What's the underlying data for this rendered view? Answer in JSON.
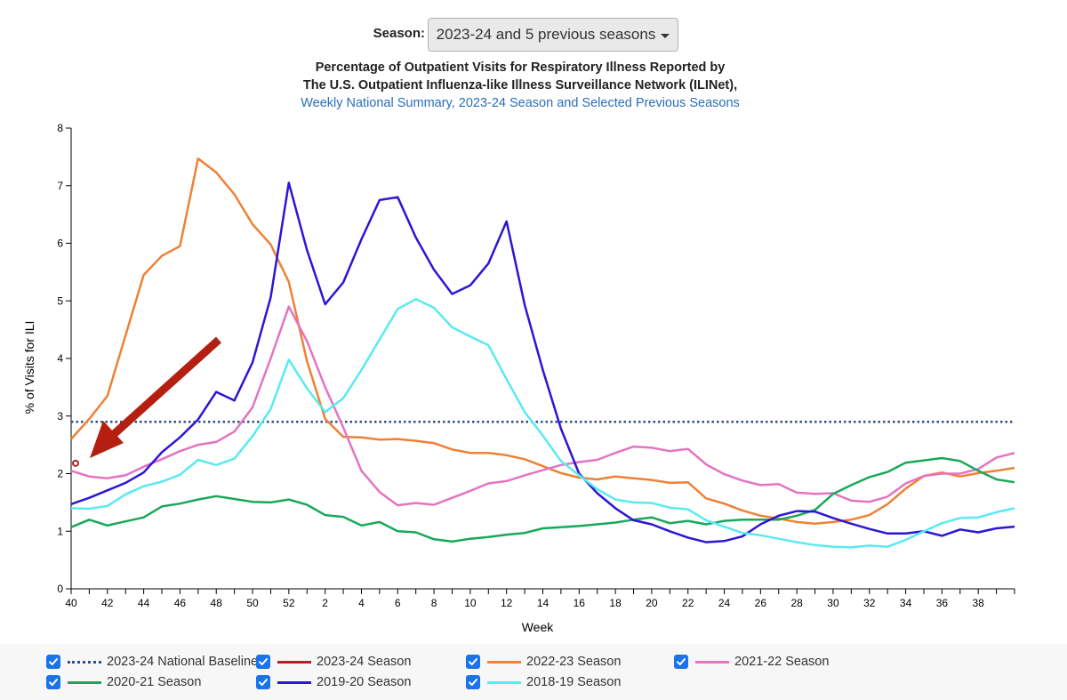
{
  "header": {
    "season_label": "Season:",
    "season_value": "2023-24 and 5 previous seasons",
    "title_line1": "Percentage of Outpatient Visits for Respiratory Illness Reported by",
    "title_line2": "The U.S. Outpatient Influenza-like Illness Surveillance Network (ILINet),",
    "title_line3": "Weekly National Summary, 2023-24 Season and Selected Previous Seasons"
  },
  "legend": [
    {
      "label": "2023-24 National Baseline",
      "color": "#2e4d8c",
      "dashed": true,
      "checked": true
    },
    {
      "label": "2023-24 Season",
      "color": "#b22222",
      "dashed": false,
      "checked": true
    },
    {
      "label": "2022-23 Season",
      "color": "#ee8136",
      "dashed": false,
      "checked": true
    },
    {
      "label": "2021-22 Season",
      "color": "#e374c2",
      "dashed": false,
      "checked": true
    },
    {
      "label": "2020-21 Season",
      "color": "#19a85a",
      "dashed": false,
      "checked": true
    },
    {
      "label": "2019-20 Season",
      "color": "#2c16d6",
      "dashed": false,
      "checked": true
    },
    {
      "label": "2018-19 Season",
      "color": "#59eaf2",
      "dashed": false,
      "checked": true
    }
  ],
  "chart_data": {
    "type": "line",
    "xlabel": "Week",
    "ylabel": "% of Visits for ILI",
    "ylim": [
      0,
      8
    ],
    "yticks": [
      "0",
      "1",
      "2",
      "3",
      "4",
      "5",
      "6",
      "7",
      "8"
    ],
    "xtick_labels": [
      "40",
      "42",
      "44",
      "46",
      "48",
      "50",
      "52",
      "2",
      "4",
      "6",
      "8",
      "10",
      "12",
      "14",
      "16",
      "18",
      "20",
      "22",
      "24",
      "26",
      "28",
      "30",
      "32",
      "34",
      "36",
      "38"
    ],
    "x_count": 53,
    "baseline": {
      "name": "2023-24 National Baseline",
      "value": 2.9,
      "color": "#2e4d8c"
    },
    "series": [
      {
        "name": "2023-24 Season",
        "color": "#b22222",
        "values": [
          2.18
        ]
      },
      {
        "name": "2022-23 Season",
        "color": "#ee8136",
        "values": [
          2.6,
          2.95,
          3.35,
          4.4,
          5.45,
          5.78,
          5.95,
          7.47,
          7.23,
          6.85,
          6.33,
          5.98,
          5.33,
          3.95,
          2.95,
          2.64,
          2.63,
          2.59,
          2.6,
          2.57,
          2.53,
          2.42,
          2.36,
          2.36,
          2.32,
          2.25,
          2.13,
          2.01,
          1.93,
          1.9,
          1.95,
          1.92,
          1.89,
          1.84,
          1.85,
          1.57,
          1.48,
          1.36,
          1.27,
          1.22,
          1.16,
          1.13,
          1.16,
          1.2,
          1.28,
          1.47,
          1.74,
          1.96,
          2.02,
          1.95,
          2.01,
          2.05,
          2.1
        ]
      },
      {
        "name": "2021-22 Season",
        "color": "#e374c2",
        "values": [
          2.05,
          1.95,
          1.92,
          1.97,
          2.12,
          2.25,
          2.39,
          2.5,
          2.55,
          2.73,
          3.15,
          4.0,
          4.9,
          4.3,
          3.5,
          2.8,
          2.05,
          1.68,
          1.45,
          1.49,
          1.46,
          1.58,
          1.7,
          1.83,
          1.87,
          1.97,
          2.06,
          2.15,
          2.2,
          2.24,
          2.36,
          2.47,
          2.45,
          2.39,
          2.43,
          2.16,
          1.99,
          1.88,
          1.8,
          1.82,
          1.67,
          1.65,
          1.66,
          1.53,
          1.51,
          1.6,
          1.83,
          1.96,
          2.0,
          2.0,
          2.08,
          2.28,
          2.36
        ]
      },
      {
        "name": "2020-21 Season",
        "color": "#19a85a",
        "values": [
          1.07,
          1.2,
          1.1,
          1.17,
          1.24,
          1.43,
          1.48,
          1.55,
          1.61,
          1.56,
          1.51,
          1.5,
          1.55,
          1.46,
          1.28,
          1.25,
          1.1,
          1.16,
          1.0,
          0.98,
          0.86,
          0.82,
          0.87,
          0.9,
          0.94,
          0.97,
          1.05,
          1.07,
          1.09,
          1.12,
          1.15,
          1.2,
          1.24,
          1.14,
          1.18,
          1.12,
          1.18,
          1.2,
          1.2,
          1.2,
          1.27,
          1.37,
          1.65,
          1.8,
          1.94,
          2.03,
          2.19,
          2.23,
          2.27,
          2.22,
          2.05,
          1.9,
          1.85
        ]
      },
      {
        "name": "2019-20 Season",
        "color": "#2c16d6",
        "values": [
          1.47,
          1.58,
          1.71,
          1.84,
          2.02,
          2.37,
          2.63,
          2.94,
          3.42,
          3.27,
          3.93,
          5.06,
          7.05,
          5.88,
          4.94,
          5.32,
          6.07,
          6.75,
          6.8,
          6.1,
          5.54,
          5.12,
          5.27,
          5.65,
          6.38,
          4.93,
          3.8,
          2.78,
          2.0,
          1.66,
          1.4,
          1.19,
          1.12,
          1.0,
          0.89,
          0.81,
          0.83,
          0.91,
          1.12,
          1.27,
          1.35,
          1.34,
          1.23,
          1.13,
          1.04,
          0.96,
          0.96,
          1.0,
          0.92,
          1.03,
          0.98,
          1.05,
          1.08
        ]
      },
      {
        "name": "2018-19 Season",
        "color": "#59eaf2",
        "values": [
          1.4,
          1.39,
          1.44,
          1.64,
          1.78,
          1.86,
          1.98,
          2.24,
          2.15,
          2.26,
          2.65,
          3.12,
          3.98,
          3.48,
          3.07,
          3.31,
          3.8,
          4.33,
          4.86,
          5.03,
          4.88,
          4.54,
          4.38,
          4.23,
          3.64,
          3.07,
          2.66,
          2.22,
          1.97,
          1.73,
          1.55,
          1.5,
          1.49,
          1.41,
          1.38,
          1.19,
          1.08,
          0.97,
          0.93,
          0.87,
          0.81,
          0.76,
          0.73,
          0.72,
          0.75,
          0.73,
          0.85,
          1.0,
          1.14,
          1.23,
          1.24,
          1.33,
          1.4
        ]
      }
    ],
    "annotation": {
      "type": "arrow",
      "color": "#b41f10",
      "description": "points to 2023-24 season starting value"
    }
  }
}
